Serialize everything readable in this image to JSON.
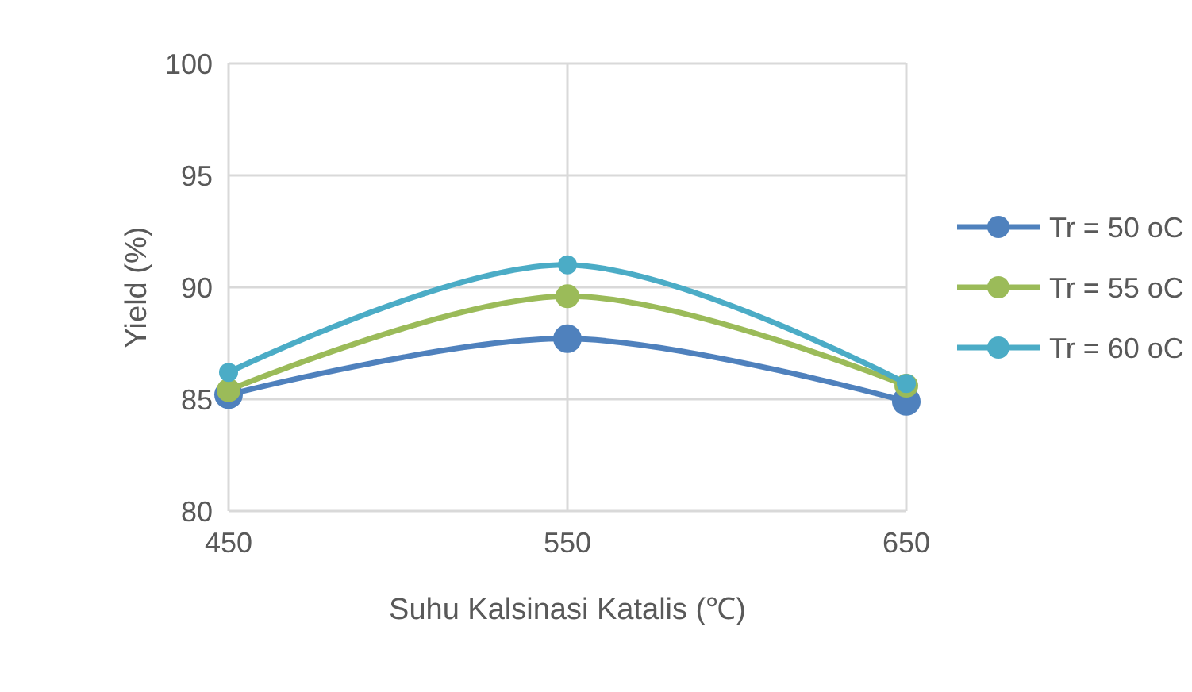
{
  "chart_data": {
    "type": "line",
    "xlabel": "Suhu Kalsinasi Katalis (℃)",
    "ylabel": "Yield (%)",
    "x": [
      450,
      550,
      650
    ],
    "series": [
      {
        "name": "Tr = 50 oC",
        "color": "#4f81bd",
        "values": [
          85.2,
          87.7,
          84.9
        ]
      },
      {
        "name": "Tr = 55 oC",
        "color": "#9bbb59",
        "values": [
          85.4,
          89.6,
          85.6
        ]
      },
      {
        "name": "Tr = 60 oC",
        "color": "#4bacc6",
        "values": [
          86.2,
          91.0,
          85.7
        ]
      }
    ],
    "xlim": [
      450,
      650
    ],
    "xticks": [
      450,
      550,
      650
    ],
    "ylim": [
      80,
      100
    ],
    "yticks": [
      80,
      85,
      90,
      95,
      100
    ],
    "grid": true,
    "legend": "right",
    "marker": "circle",
    "line_style": "solid"
  }
}
